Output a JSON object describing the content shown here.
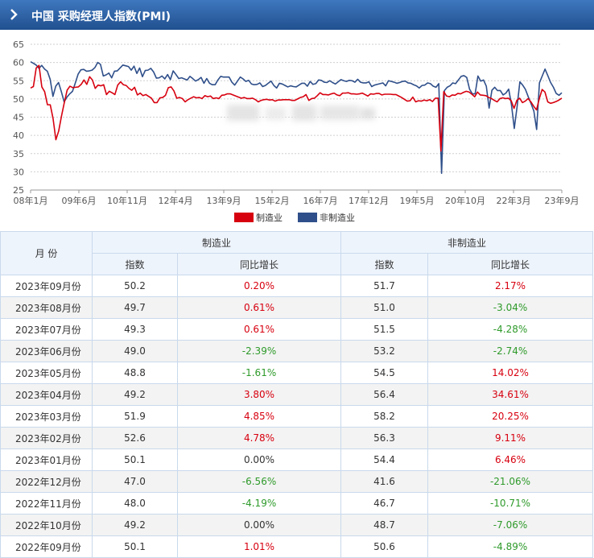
{
  "header": {
    "title": "中国 采购经理人指数(PMI)"
  },
  "chart_data": {
    "type": "line",
    "x_ticks": [
      "08年1月",
      "09年6月",
      "10年11月",
      "12年4月",
      "13年9月",
      "15年2月",
      "16年7月",
      "17年12月",
      "19年5月",
      "20年10月",
      "22年3月",
      "23年9月"
    ],
    "ylim": [
      25,
      65
    ],
    "y_ticks": [
      25,
      30,
      35,
      40,
      45,
      50,
      55,
      60,
      65
    ],
    "grid": "horizontal dashed",
    "legend_position": "bottom-center",
    "series": [
      {
        "name": "制造业",
        "color": "#d7000f",
        "values": [
          53.0,
          53.4,
          58.5,
          59.2,
          53.3,
          52.0,
          48.4,
          48.4,
          44.6,
          38.8,
          41.2,
          45.3,
          49.0,
          52.4,
          53.5,
          53.1,
          53.2,
          53.3,
          54.0,
          55.2,
          54.0,
          56.1,
          55.2,
          52.9,
          53.8,
          53.6,
          53.9,
          51.2,
          52.1,
          51.7,
          51.2,
          53.8,
          54.7,
          53.9,
          53.7,
          52.9,
          52.4,
          53.2,
          51.1,
          51.6,
          50.9,
          51.2,
          50.7,
          50.2,
          49.0,
          49.0,
          50.3,
          50.4,
          51.0,
          53.1,
          53.3,
          52.2,
          50.2,
          50.4,
          50.1,
          49.2,
          49.8,
          50.2,
          50.6,
          50.3,
          50.4,
          50.1,
          50.9,
          50.6,
          50.8,
          50.1,
          50.3,
          50.1,
          51.0,
          51.1,
          51.4,
          51.4,
          51.1,
          50.8,
          50.5,
          50.2,
          50.4,
          50.1,
          50.1,
          50.2,
          49.8,
          49.2,
          49.6,
          49.8,
          49.9,
          49.7,
          49.8,
          49.4,
          49.7,
          49.7,
          49.8,
          49.8,
          49.8,
          49.6,
          49.6,
          50.0,
          50.4,
          50.6,
          51.2,
          49.6,
          50.1,
          50.2,
          50.9,
          51.7,
          51.2,
          51.2,
          51.1,
          51.4,
          51.6,
          51.1,
          50.9,
          51.6,
          51.6,
          51.7,
          51.4,
          51.4,
          51.3,
          51.4,
          51.6,
          51.2,
          50.8,
          51.4,
          51.3,
          51.5,
          51.5,
          51.1,
          51.3,
          51.3,
          51.3,
          51.2,
          51.2,
          50.8,
          50.4,
          49.9,
          49.4,
          49.5,
          50.5,
          49.2,
          49.5,
          49.4,
          49.7,
          49.5,
          49.8,
          49.3,
          50.2,
          50.2,
          35.7,
          52.0,
          50.8,
          50.6,
          51.1,
          51.0,
          51.5,
          51.4,
          51.8,
          52.1,
          51.9,
          51.3,
          50.6,
          51.9,
          51.1,
          51.0,
          50.9,
          50.4,
          50.1,
          49.6,
          49.2,
          50.1,
          50.3,
          50.1,
          50.2,
          49.5,
          47.4,
          49.6,
          50.2,
          49.0,
          49.4,
          50.1,
          49.2,
          48.0,
          47.0,
          50.1,
          52.6,
          51.9,
          49.2,
          48.8,
          49.0,
          49.3,
          49.7,
          50.2
        ]
      },
      {
        "name": "非制造业",
        "color": "#2f4f8a",
        "values": [
          60.2,
          59.8,
          59.3,
          58.4,
          59.2,
          58.2,
          57.6,
          55.4,
          50.7,
          53.5,
          54.5,
          52.0,
          49.2,
          50.5,
          51.4,
          52.1,
          54.4,
          56.8,
          58.0,
          58.1,
          57.6,
          57.7,
          57.9,
          58.6,
          60.0,
          59.5,
          56.3,
          56.6,
          57.1,
          55.8,
          57.6,
          57.7,
          58.5,
          59.3,
          59.1,
          58.9,
          57.9,
          59.0,
          57.0,
          58.5,
          56.1,
          57.8,
          57.9,
          58.4,
          57.4,
          55.7,
          55.8,
          56.3,
          55.5,
          56.7,
          55.3,
          57.7,
          56.7,
          55.6,
          55.8,
          55.5,
          55.2,
          56.2,
          55.6,
          54.9,
          55.3,
          55.9,
          54.3,
          55.6,
          54.3,
          53.9,
          53.9,
          55.2,
          56.2,
          56.0,
          56.0,
          56.0,
          54.6,
          53.8,
          54.9,
          56.0,
          55.5,
          54.8,
          55.1,
          54.1,
          53.9,
          54.0,
          54.4,
          53.4,
          53.7,
          54.3,
          54.9,
          53.7,
          53.0,
          54.3,
          54.1,
          53.7,
          53.3,
          53.6,
          53.4,
          53.3,
          53.8,
          54.3,
          54.3,
          53.5,
          54.8,
          54.0,
          54.2,
          55.2,
          55.1,
          54.6,
          54.5,
          55.0,
          54.5,
          54.1,
          54.7,
          55.3,
          55.0,
          54.8,
          55.1,
          55.0,
          54.6,
          55.4,
          54.6,
          54.4,
          54.4,
          54.7,
          53.4,
          53.8,
          54.0,
          54.2,
          54.4,
          53.6,
          55.0,
          54.8,
          54.6,
          54.3,
          54.5,
          54.8,
          54.9,
          54.4,
          54.3,
          53.9,
          53.6,
          53.0,
          53.7,
          53.8,
          54.4,
          54.2,
          53.5,
          53.2,
          54.2,
          29.6,
          52.3,
          53.2,
          53.6,
          54.4,
          54.2,
          55.2,
          56.2,
          56.4,
          55.9,
          52.7,
          51.4,
          51.4,
          56.3,
          54.9,
          55.2,
          53.5,
          47.5,
          52.4,
          53.2,
          52.3,
          52.3,
          51.1,
          51.6,
          52.7,
          48.4,
          41.9,
          47.8,
          54.7,
          53.8,
          52.6,
          50.6,
          48.7,
          46.7,
          41.6,
          54.4,
          56.3,
          58.2,
          56.4,
          54.5,
          53.2,
          51.5,
          51.0,
          51.7
        ]
      }
    ]
  },
  "table": {
    "month_header": "月 份",
    "group_headers": [
      "制造业",
      "非制造业"
    ],
    "sub_headers": [
      "指数",
      "同比增长",
      "指数",
      "同比增长"
    ],
    "rows": [
      {
        "month": "2023年09月份",
        "m_index": "50.2",
        "m_yoy": "0.20%",
        "n_index": "51.7",
        "n_yoy": "2.17%"
      },
      {
        "month": "2023年08月份",
        "m_index": "49.7",
        "m_yoy": "0.61%",
        "n_index": "51.0",
        "n_yoy": "-3.04%"
      },
      {
        "month": "2023年07月份",
        "m_index": "49.3",
        "m_yoy": "0.61%",
        "n_index": "51.5",
        "n_yoy": "-4.28%"
      },
      {
        "month": "2023年06月份",
        "m_index": "49.0",
        "m_yoy": "-2.39%",
        "n_index": "53.2",
        "n_yoy": "-2.74%"
      },
      {
        "month": "2023年05月份",
        "m_index": "48.8",
        "m_yoy": "-1.61%",
        "n_index": "54.5",
        "n_yoy": "14.02%"
      },
      {
        "month": "2023年04月份",
        "m_index": "49.2",
        "m_yoy": "3.80%",
        "n_index": "56.4",
        "n_yoy": "34.61%"
      },
      {
        "month": "2023年03月份",
        "m_index": "51.9",
        "m_yoy": "4.85%",
        "n_index": "58.2",
        "n_yoy": "20.25%"
      },
      {
        "month": "2023年02月份",
        "m_index": "52.6",
        "m_yoy": "4.78%",
        "n_index": "56.3",
        "n_yoy": "9.11%"
      },
      {
        "month": "2023年01月份",
        "m_index": "50.1",
        "m_yoy": "0.00%",
        "n_index": "54.4",
        "n_yoy": "6.46%"
      },
      {
        "month": "2022年12月份",
        "m_index": "47.0",
        "m_yoy": "-6.56%",
        "n_index": "41.6",
        "n_yoy": "-21.06%"
      },
      {
        "month": "2022年11月份",
        "m_index": "48.0",
        "m_yoy": "-4.19%",
        "n_index": "46.7",
        "n_yoy": "-10.71%"
      },
      {
        "month": "2022年10月份",
        "m_index": "49.2",
        "m_yoy": "0.00%",
        "n_index": "48.7",
        "n_yoy": "-7.06%"
      },
      {
        "month": "2022年09月份",
        "m_index": "50.1",
        "m_yoy": "1.01%",
        "n_index": "50.6",
        "n_yoy": "-4.89%"
      }
    ]
  }
}
